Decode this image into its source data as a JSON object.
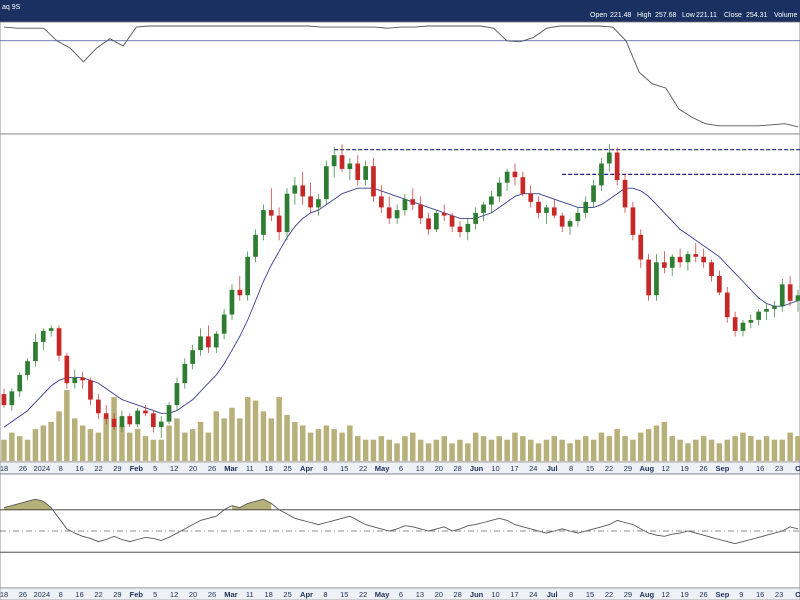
{
  "header": {
    "symbol": "aq 9S",
    "ohlc": [
      {
        "label": "Open",
        "value": "221.48"
      },
      {
        "label": "High",
        "value": "257.68"
      },
      {
        "label": "Low",
        "value": "221.11"
      },
      {
        "label": "Close",
        "value": "254.31"
      },
      {
        "label": "Volume",
        "value": ""
      }
    ]
  },
  "axis_labels": [
    "18",
    "26",
    "2024",
    "8",
    "16",
    "22",
    "29",
    "Feb",
    "5",
    "12",
    "20",
    "26",
    "Mar",
    "11",
    "18",
    "25",
    "Apr",
    "8",
    "15",
    "22",
    "May",
    "6",
    "13",
    "20",
    "28",
    "Jun",
    "10",
    "17",
    "24",
    "Jul",
    "8",
    "15",
    "22",
    "29",
    "Aug",
    "12",
    "19",
    "26",
    "Sep",
    "9",
    "16",
    "23",
    "O"
  ],
  "colors": {
    "header_bg": "#1a3060",
    "up": "#2e7d32",
    "down": "#c62828",
    "ma": "#3a3f8f",
    "volume": "#b8b07a",
    "resistance": "#1a237e",
    "indicator": "#555555"
  },
  "chart_data": [
    {
      "type": "line",
      "panel": "upper-indicator",
      "series": [
        {
          "values": [
            0.98,
            0.97,
            0.97,
            0.97,
            0.85,
            0.78,
            0.65,
            0.78,
            0.87,
            0.8,
            0.98,
            0.99,
            0.99,
            0.99,
            0.99,
            0.99,
            0.99,
            0.99,
            0.99,
            0.99,
            0.99,
            0.99,
            0.99,
            0.99,
            0.98,
            0.98,
            0.98,
            0.98,
            0.98,
            0.97,
            0.98,
            0.98,
            0.99,
            0.99,
            0.99,
            0.99,
            0.99,
            0.97,
            0.85,
            0.84,
            0.88,
            0.97,
            0.99,
            0.99,
            0.99,
            0.99,
            0.98,
            0.85,
            0.55,
            0.44,
            0.4,
            0.2,
            0.12,
            0.06,
            0.04,
            0.04,
            0.04,
            0.04,
            0.05,
            0.06,
            0.03
          ]
        }
      ],
      "reference_line": 0.85
    },
    {
      "type": "candlestick",
      "panel": "price",
      "candles": [
        {
          "o": 124,
          "h": 126,
          "l": 119,
          "c": 120
        },
        {
          "o": 120,
          "h": 126,
          "l": 118,
          "c": 125
        },
        {
          "o": 125,
          "h": 132,
          "l": 123,
          "c": 131
        },
        {
          "o": 131,
          "h": 137,
          "l": 129,
          "c": 136
        },
        {
          "o": 136,
          "h": 146,
          "l": 134,
          "c": 143
        },
        {
          "o": 143,
          "h": 148,
          "l": 140,
          "c": 147
        },
        {
          "o": 147,
          "h": 149,
          "l": 145,
          "c": 148
        },
        {
          "o": 148,
          "h": 149,
          "l": 136,
          "c": 138
        },
        {
          "o": 138,
          "h": 139,
          "l": 126,
          "c": 128
        },
        {
          "o": 128,
          "h": 133,
          "l": 126,
          "c": 130
        },
        {
          "o": 130,
          "h": 132,
          "l": 126,
          "c": 129
        },
        {
          "o": 129,
          "h": 130,
          "l": 120,
          "c": 122
        },
        {
          "o": 122,
          "h": 124,
          "l": 115,
          "c": 117
        },
        {
          "o": 117,
          "h": 120,
          "l": 113,
          "c": 115
        },
        {
          "o": 115,
          "h": 117,
          "l": 111,
          "c": 112
        },
        {
          "o": 112,
          "h": 118,
          "l": 110,
          "c": 116
        },
        {
          "o": 116,
          "h": 117,
          "l": 112,
          "c": 113
        },
        {
          "o": 113,
          "h": 119,
          "l": 112,
          "c": 118
        },
        {
          "o": 118,
          "h": 120,
          "l": 116,
          "c": 117
        },
        {
          "o": 117,
          "h": 118,
          "l": 110,
          "c": 112
        },
        {
          "o": 112,
          "h": 116,
          "l": 108,
          "c": 114
        },
        {
          "o": 114,
          "h": 121,
          "l": 113,
          "c": 120
        },
        {
          "o": 120,
          "h": 130,
          "l": 118,
          "c": 128
        },
        {
          "o": 128,
          "h": 137,
          "l": 126,
          "c": 135
        },
        {
          "o": 135,
          "h": 142,
          "l": 133,
          "c": 140
        },
        {
          "o": 140,
          "h": 148,
          "l": 138,
          "c": 145
        },
        {
          "o": 145,
          "h": 149,
          "l": 139,
          "c": 141
        },
        {
          "o": 141,
          "h": 147,
          "l": 139,
          "c": 146
        },
        {
          "o": 146,
          "h": 155,
          "l": 144,
          "c": 153
        },
        {
          "o": 153,
          "h": 164,
          "l": 151,
          "c": 162
        },
        {
          "o": 162,
          "h": 167,
          "l": 158,
          "c": 160
        },
        {
          "o": 160,
          "h": 176,
          "l": 158,
          "c": 174
        },
        {
          "o": 174,
          "h": 184,
          "l": 172,
          "c": 182
        },
        {
          "o": 182,
          "h": 193,
          "l": 180,
          "c": 191
        },
        {
          "o": 191,
          "h": 199,
          "l": 187,
          "c": 189
        },
        {
          "o": 189,
          "h": 192,
          "l": 180,
          "c": 183
        },
        {
          "o": 183,
          "h": 199,
          "l": 180,
          "c": 197
        },
        {
          "o": 197,
          "h": 203,
          "l": 193,
          "c": 200
        },
        {
          "o": 200,
          "h": 205,
          "l": 193,
          "c": 196
        },
        {
          "o": 196,
          "h": 201,
          "l": 190,
          "c": 192
        },
        {
          "o": 192,
          "h": 197,
          "l": 189,
          "c": 195
        },
        {
          "o": 195,
          "h": 209,
          "l": 193,
          "c": 207
        },
        {
          "o": 207,
          "h": 214,
          "l": 203,
          "c": 211
        },
        {
          "o": 211,
          "h": 215,
          "l": 205,
          "c": 206
        },
        {
          "o": 206,
          "h": 210,
          "l": 202,
          "c": 208
        },
        {
          "o": 208,
          "h": 211,
          "l": 200,
          "c": 202
        },
        {
          "o": 202,
          "h": 209,
          "l": 200,
          "c": 207
        },
        {
          "o": 207,
          "h": 210,
          "l": 194,
          "c": 196
        },
        {
          "o": 196,
          "h": 200,
          "l": 190,
          "c": 192
        },
        {
          "o": 192,
          "h": 196,
          "l": 186,
          "c": 188
        },
        {
          "o": 188,
          "h": 193,
          "l": 186,
          "c": 191
        },
        {
          "o": 191,
          "h": 197,
          "l": 189,
          "c": 195
        },
        {
          "o": 195,
          "h": 199,
          "l": 191,
          "c": 193
        },
        {
          "o": 193,
          "h": 196,
          "l": 186,
          "c": 188
        },
        {
          "o": 188,
          "h": 190,
          "l": 182,
          "c": 184
        },
        {
          "o": 184,
          "h": 191,
          "l": 183,
          "c": 190
        },
        {
          "o": 190,
          "h": 193,
          "l": 187,
          "c": 189
        },
        {
          "o": 189,
          "h": 190,
          "l": 183,
          "c": 185
        },
        {
          "o": 185,
          "h": 187,
          "l": 181,
          "c": 183
        },
        {
          "o": 183,
          "h": 188,
          "l": 180,
          "c": 186
        },
        {
          "o": 186,
          "h": 192,
          "l": 184,
          "c": 190
        },
        {
          "o": 190,
          "h": 194,
          "l": 187,
          "c": 193
        },
        {
          "o": 193,
          "h": 198,
          "l": 190,
          "c": 196
        },
        {
          "o": 196,
          "h": 203,
          "l": 194,
          "c": 201
        },
        {
          "o": 201,
          "h": 206,
          "l": 198,
          "c": 205
        },
        {
          "o": 205,
          "h": 208,
          "l": 200,
          "c": 203
        },
        {
          "o": 203,
          "h": 205,
          "l": 196,
          "c": 197
        },
        {
          "o": 197,
          "h": 200,
          "l": 192,
          "c": 194
        },
        {
          "o": 194,
          "h": 196,
          "l": 188,
          "c": 190
        },
        {
          "o": 190,
          "h": 193,
          "l": 186,
          "c": 192
        },
        {
          "o": 192,
          "h": 195,
          "l": 188,
          "c": 189
        },
        {
          "o": 189,
          "h": 190,
          "l": 183,
          "c": 185
        },
        {
          "o": 185,
          "h": 188,
          "l": 182,
          "c": 187
        },
        {
          "o": 187,
          "h": 192,
          "l": 185,
          "c": 190
        },
        {
          "o": 190,
          "h": 196,
          "l": 188,
          "c": 194
        },
        {
          "o": 194,
          "h": 202,
          "l": 192,
          "c": 200
        },
        {
          "o": 200,
          "h": 210,
          "l": 198,
          "c": 208
        },
        {
          "o": 208,
          "h": 215,
          "l": 205,
          "c": 212
        },
        {
          "o": 212,
          "h": 214,
          "l": 200,
          "c": 202
        },
        {
          "o": 202,
          "h": 204,
          "l": 190,
          "c": 192
        },
        {
          "o": 192,
          "h": 194,
          "l": 180,
          "c": 182
        },
        {
          "o": 182,
          "h": 184,
          "l": 170,
          "c": 173
        },
        {
          "o": 173,
          "h": 175,
          "l": 158,
          "c": 160
        },
        {
          "o": 160,
          "h": 175,
          "l": 158,
          "c": 172
        },
        {
          "o": 172,
          "h": 176,
          "l": 168,
          "c": 170
        },
        {
          "o": 170,
          "h": 175,
          "l": 167,
          "c": 174
        },
        {
          "o": 174,
          "h": 177,
          "l": 170,
          "c": 172
        },
        {
          "o": 172,
          "h": 176,
          "l": 169,
          "c": 175
        },
        {
          "o": 175,
          "h": 179,
          "l": 172,
          "c": 174
        },
        {
          "o": 174,
          "h": 177,
          "l": 170,
          "c": 172
        },
        {
          "o": 172,
          "h": 173,
          "l": 165,
          "c": 167
        },
        {
          "o": 167,
          "h": 169,
          "l": 160,
          "c": 161
        },
        {
          "o": 161,
          "h": 163,
          "l": 150,
          "c": 152
        },
        {
          "o": 152,
          "h": 154,
          "l": 145,
          "c": 147
        },
        {
          "o": 147,
          "h": 151,
          "l": 145,
          "c": 150
        },
        {
          "o": 150,
          "h": 153,
          "l": 148,
          "c": 151
        },
        {
          "o": 151,
          "h": 155,
          "l": 149,
          "c": 154
        },
        {
          "o": 154,
          "h": 157,
          "l": 151,
          "c": 155
        },
        {
          "o": 155,
          "h": 158,
          "l": 152,
          "c": 156
        },
        {
          "o": 156,
          "h": 166,
          "l": 154,
          "c": 164
        },
        {
          "o": 164,
          "h": 167,
          "l": 156,
          "c": 158
        },
        {
          "o": 158,
          "h": 162,
          "l": 154,
          "c": 160
        }
      ],
      "moving_average": [
        112,
        114,
        116,
        118,
        121,
        124,
        127,
        129,
        130,
        130,
        130,
        129,
        128,
        126,
        124,
        122,
        121,
        120,
        119,
        118,
        117,
        117,
        118,
        120,
        122,
        125,
        128,
        131,
        135,
        140,
        145,
        151,
        158,
        165,
        171,
        176,
        181,
        185,
        188,
        190,
        191,
        193,
        195,
        197,
        198,
        199,
        199,
        199,
        198,
        197,
        196,
        195,
        194,
        193,
        192,
        191,
        190,
        189,
        188,
        188,
        188,
        189,
        190,
        192,
        194,
        196,
        197,
        197,
        197,
        196,
        195,
        194,
        193,
        192,
        192,
        192,
        193,
        195,
        197,
        199,
        199,
        198,
        196,
        193,
        190,
        187,
        184,
        182,
        180,
        178,
        176,
        174,
        171,
        168,
        165,
        162,
        159,
        157,
        156,
        156,
        157,
        158
      ],
      "resistance": [
        {
          "level": 213,
          "from_index": 42
        },
        {
          "level": 204,
          "from_index": 71
        }
      ]
    },
    {
      "type": "bar",
      "panel": "volume",
      "values": [
        0.3,
        0.4,
        0.35,
        0.3,
        0.45,
        0.5,
        0.55,
        0.7,
        1.0,
        0.6,
        0.5,
        0.45,
        0.4,
        0.6,
        0.9,
        0.5,
        0.4,
        0.45,
        0.35,
        0.3,
        0.3,
        0.5,
        0.6,
        0.4,
        0.45,
        0.55,
        0.4,
        0.7,
        0.6,
        0.75,
        0.6,
        0.9,
        0.85,
        0.7,
        0.6,
        0.9,
        0.65,
        0.55,
        0.5,
        0.4,
        0.45,
        0.5,
        0.45,
        0.4,
        0.5,
        0.35,
        0.3,
        0.3,
        0.35,
        0.3,
        0.25,
        0.35,
        0.4,
        0.3,
        0.25,
        0.3,
        0.35,
        0.25,
        0.3,
        0.25,
        0.4,
        0.35,
        0.3,
        0.35,
        0.3,
        0.4,
        0.35,
        0.3,
        0.25,
        0.3,
        0.35,
        0.3,
        0.25,
        0.3,
        0.35,
        0.3,
        0.4,
        0.35,
        0.45,
        0.35,
        0.3,
        0.4,
        0.45,
        0.5,
        0.55,
        0.35,
        0.3,
        0.25,
        0.3,
        0.35,
        0.3,
        0.25,
        0.3,
        0.35,
        0.4,
        0.35,
        0.3,
        0.35,
        0.3,
        0.3,
        0.4,
        0.35
      ]
    },
    {
      "type": "line",
      "panel": "lower-indicator",
      "series": [
        {
          "values": [
            72,
            74,
            76,
            78,
            80,
            78,
            72,
            62,
            52,
            48,
            45,
            43,
            40,
            42,
            45,
            42,
            40,
            42,
            44,
            43,
            41,
            44,
            48,
            52,
            56,
            60,
            62,
            64,
            70,
            74,
            72,
            76,
            78,
            80,
            76,
            70,
            66,
            62,
            60,
            58,
            56,
            58,
            60,
            62,
            64,
            60,
            56,
            54,
            52,
            50,
            52,
            55,
            54,
            52,
            50,
            52,
            54,
            50,
            52,
            55,
            56,
            58,
            60,
            62,
            60,
            56,
            54,
            52,
            50,
            48,
            50,
            52,
            50,
            48,
            50,
            52,
            54,
            56,
            60,
            58,
            56,
            52,
            48,
            46,
            45,
            47,
            48,
            50,
            48,
            46,
            44,
            42,
            40,
            38,
            40,
            42,
            44,
            46,
            48,
            50,
            54,
            52
          ]
        }
      ],
      "upper_band": 70,
      "lower_band": 30,
      "midline": 50
    }
  ]
}
